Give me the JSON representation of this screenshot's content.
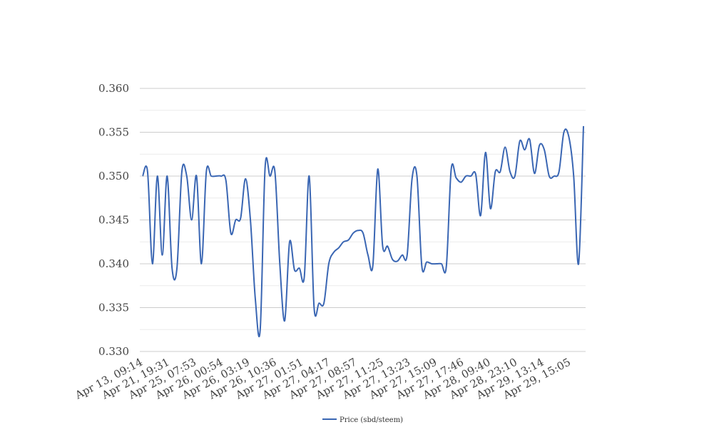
{
  "chart_data": {
    "type": "line",
    "title": "",
    "xlabel": "",
    "ylabel": "",
    "ylim": [
      0.33,
      0.36
    ],
    "yticks": [
      "0.330",
      "0.335",
      "0.340",
      "0.345",
      "0.350",
      "0.355",
      "0.360"
    ],
    "ytick_values": [
      0.33,
      0.335,
      0.34,
      0.345,
      0.35,
      0.355,
      0.36
    ],
    "x_tick_labels": [
      "Apr 13, 09:14",
      "Apr 21, 19:31",
      "Apr 25, 07:53",
      "Apr 26, 00:54",
      "Apr 26, 03:19",
      "Apr 26, 10:36",
      "Apr 27, 01:51",
      "Apr 27, 04:17",
      "Apr 27, 08:57",
      "Apr 27, 11:25",
      "Apr 27, 13:23",
      "Apr 27, 15:09",
      "Apr 27, 17:46",
      "Apr 28, 09:40",
      "Apr 28, 23:10",
      "Apr 29, 13:14",
      "Apr 29, 15:05"
    ],
    "grid": true,
    "legend_position": "bottom-center",
    "series": [
      {
        "name": "Price (sbd/steem)",
        "color": "#3a66b3",
        "values": [
          0.35,
          0.3505,
          0.34,
          0.35,
          0.341,
          0.35,
          0.3395,
          0.3395,
          0.3505,
          0.35,
          0.345,
          0.35,
          0.34,
          0.3505,
          0.35,
          0.35,
          0.35,
          0.3495,
          0.3435,
          0.345,
          0.3452,
          0.3497,
          0.345,
          0.336,
          0.3325,
          0.351,
          0.35,
          0.3505,
          0.34,
          0.3335,
          0.3425,
          0.3393,
          0.3395,
          0.3385,
          0.35,
          0.335,
          0.3355,
          0.3355,
          0.34,
          0.3413,
          0.3418,
          0.3425,
          0.3427,
          0.3435,
          0.3438,
          0.3435,
          0.341,
          0.3398,
          0.3508,
          0.342,
          0.342,
          0.3405,
          0.3403,
          0.341,
          0.341,
          0.3497,
          0.35,
          0.3397,
          0.3402,
          0.34,
          0.34,
          0.34,
          0.3397,
          0.3508,
          0.3498,
          0.3493,
          0.35,
          0.35,
          0.3502,
          0.3455,
          0.3527,
          0.3463,
          0.3505,
          0.3505,
          0.3533,
          0.3505,
          0.35,
          0.354,
          0.353,
          0.3542,
          0.3503,
          0.3535,
          0.353,
          0.35,
          0.35,
          0.3505,
          0.355,
          0.3545,
          0.35,
          0.34,
          0.3557
        ]
      }
    ]
  }
}
